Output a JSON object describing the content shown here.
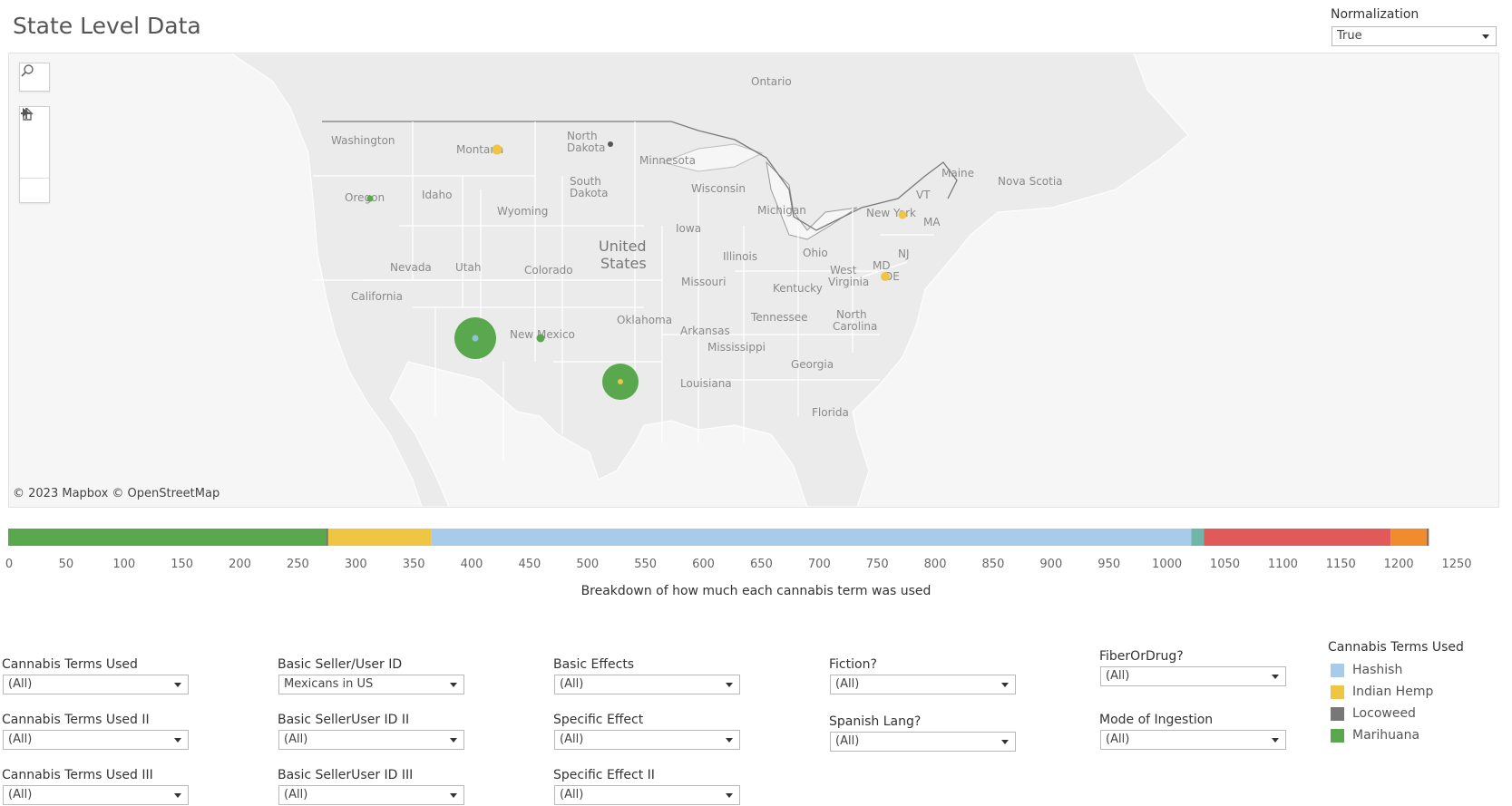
{
  "header": {
    "title": "State Level Data"
  },
  "normalization": {
    "label": "Normalization",
    "value": "True"
  },
  "map": {
    "attribution": "© 2023 Mapbox  © OpenStreetMap",
    "labels": [
      "Ontario",
      "Washington",
      "Montana",
      "North Dakota",
      "Minnesota",
      "Oregon",
      "Idaho",
      "Wyoming",
      "South Dakota",
      "Wisconsin",
      "Michigan",
      "New York",
      "Maine",
      "Nova Scotia",
      "VT",
      "MA",
      "NJ",
      "MD",
      "DE",
      "United States",
      "Iowa",
      "Nevada",
      "Utah",
      "Colorado",
      "Illinois",
      "Ohio",
      "West Virginia",
      "California",
      "Missouri",
      "Kentucky",
      "New Mexico",
      "Oklahoma",
      "Tennessee",
      "North Carolina",
      "Arkansas",
      "Mississippi",
      "Georgia",
      "Louisiana",
      "Florida"
    ],
    "marks": [
      {
        "state": "Arizona",
        "color": "#5aa84e",
        "inner": "#8fc1dc",
        "size": "large"
      },
      {
        "state": "Texas",
        "color": "#5aa84e",
        "inner": "#eec643",
        "size": "large"
      },
      {
        "state": "Montana",
        "color": "#eec643",
        "size": "small"
      },
      {
        "state": "Oregon",
        "color": "#5aa84e",
        "size": "small"
      },
      {
        "state": "New Mexico",
        "color": "#5aa84e",
        "size": "small"
      },
      {
        "state": "New York",
        "color": "#eec643",
        "size": "small"
      },
      {
        "state": "Maryland",
        "color": "#eec643",
        "size": "small"
      },
      {
        "state": "North Dakota",
        "color": "#666666",
        "size": "small"
      }
    ],
    "controls": [
      "search-icon",
      "zoom-in-icon",
      "zoom-out-icon",
      "home-icon",
      "play-icon"
    ]
  },
  "breakdown": {
    "caption": "Breakdown of how much each cannabis term was used",
    "ticks": [
      "0",
      "50",
      "100",
      "150",
      "200",
      "250",
      "300",
      "350",
      "400",
      "450",
      "500",
      "550",
      "600",
      "650",
      "700",
      "750",
      "800",
      "850",
      "900",
      "950",
      "1000",
      "1050",
      "1100",
      "1150",
      "1200",
      "1250"
    ],
    "segments": [
      {
        "color": "#5aa84e",
        "value": 275
      },
      {
        "color": "#555555",
        "value": 1
      },
      {
        "color": "#eec643",
        "value": 89
      },
      {
        "color": "#a7cbe8",
        "value": 656
      },
      {
        "color": "#6fb6a8",
        "value": 11
      },
      {
        "color": "#e05a5a",
        "value": 161
      },
      {
        "color": "#f08c2e",
        "value": 31
      },
      {
        "color": "#8a6e5a",
        "value": 2
      }
    ]
  },
  "filters": [
    {
      "label": "Cannabis Terms Used",
      "value": "(All)"
    },
    {
      "label": "Cannabis Terms Used II",
      "value": "(All)"
    },
    {
      "label": "Cannabis Terms Used III",
      "value": "(All)"
    },
    {
      "label": "Basic Seller/User ID",
      "value": "Mexicans in US"
    },
    {
      "label": "Basic SellerUser ID II",
      "value": "(All)"
    },
    {
      "label": "Basic SellerUser ID III",
      "value": "(All)"
    },
    {
      "label": "Basic Effects",
      "value": "(All)"
    },
    {
      "label": "Specific Effect",
      "value": "(All)"
    },
    {
      "label": "Specific Effect II",
      "value": "(All)"
    },
    {
      "label": "Fiction?",
      "value": "(All)"
    },
    {
      "label": "Spanish Lang?",
      "value": "(All)"
    },
    {
      "label": "FiberOrDrug?",
      "value": "(All)"
    },
    {
      "label": "Mode of Ingestion",
      "value": "(All)"
    }
  ],
  "legend": {
    "title": "Cannabis Terms Used",
    "items": [
      {
        "label": "Hashish",
        "color": "#a7cbe8"
      },
      {
        "label": "Indian Hemp",
        "color": "#eec643"
      },
      {
        "label": "Locoweed",
        "color": "#777777"
      },
      {
        "label": "Marihuana",
        "color": "#5aa84e"
      }
    ]
  }
}
